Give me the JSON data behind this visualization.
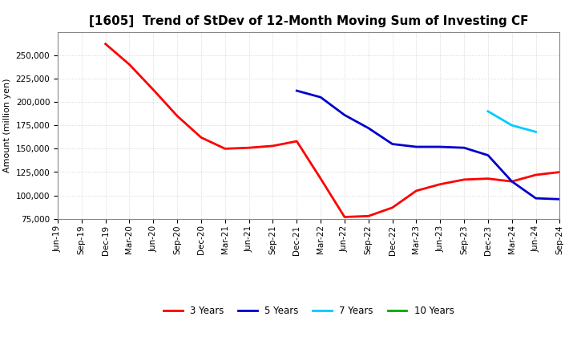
{
  "title": "[1605]  Trend of StDev of 12-Month Moving Sum of Investing CF",
  "ylabel": "Amount (million yen)",
  "ylim": [
    75000,
    275000
  ],
  "yticks": [
    75000,
    100000,
    125000,
    150000,
    175000,
    200000,
    225000,
    250000
  ],
  "background_color": "#ffffff",
  "plot_bg_color": "#ffffff",
  "grid_color": "#cccccc",
  "series": {
    "3yr": {
      "color": "#ff0000",
      "label": "3 Years",
      "x": [
        "Dec-19",
        "Mar-20",
        "Jun-20",
        "Sep-20",
        "Dec-20",
        "Mar-21",
        "Jun-21",
        "Sep-21",
        "Dec-21",
        "Mar-22",
        "Jun-22",
        "Sep-22",
        "Dec-22",
        "Mar-23",
        "Jun-23",
        "Sep-23",
        "Dec-23",
        "Mar-24",
        "Jun-24",
        "Sep-24"
      ],
      "y": [
        262000,
        240000,
        213000,
        185000,
        162000,
        150000,
        151000,
        153000,
        158000,
        118000,
        77000,
        78000,
        87000,
        105000,
        112000,
        117000,
        118000,
        115000,
        122000,
        125000
      ]
    },
    "5yr": {
      "color": "#0000cc",
      "label": "5 Years",
      "x": [
        "Dec-21",
        "Mar-22",
        "Jun-22",
        "Sep-22",
        "Dec-22",
        "Mar-23",
        "Jun-23",
        "Sep-23",
        "Dec-23",
        "Mar-24",
        "Jun-24",
        "Sep-24"
      ],
      "y": [
        212000,
        205000,
        186000,
        172000,
        155000,
        152000,
        152000,
        151000,
        143000,
        115000,
        97000,
        96000
      ]
    },
    "7yr": {
      "color": "#00ccff",
      "label": "7 Years",
      "x": [
        "Dec-23",
        "Mar-24",
        "Jun-24"
      ],
      "y": [
        190000,
        175000,
        168000
      ]
    },
    "10yr": {
      "color": "#00aa00",
      "label": "10 Years",
      "x": [],
      "y": []
    }
  },
  "xtick_labels": [
    "Jun-19",
    "Sep-19",
    "Dec-19",
    "Mar-20",
    "Jun-20",
    "Sep-20",
    "Dec-20",
    "Mar-21",
    "Jun-21",
    "Sep-21",
    "Dec-21",
    "Mar-22",
    "Jun-22",
    "Sep-22",
    "Dec-22",
    "Mar-23",
    "Jun-23",
    "Sep-23",
    "Dec-23",
    "Mar-24",
    "Jun-24",
    "Sep-24"
  ],
  "title_fontsize": 11,
  "axis_label_fontsize": 8,
  "tick_fontsize": 7.5,
  "legend_fontsize": 8.5,
  "linewidth": 2.0
}
